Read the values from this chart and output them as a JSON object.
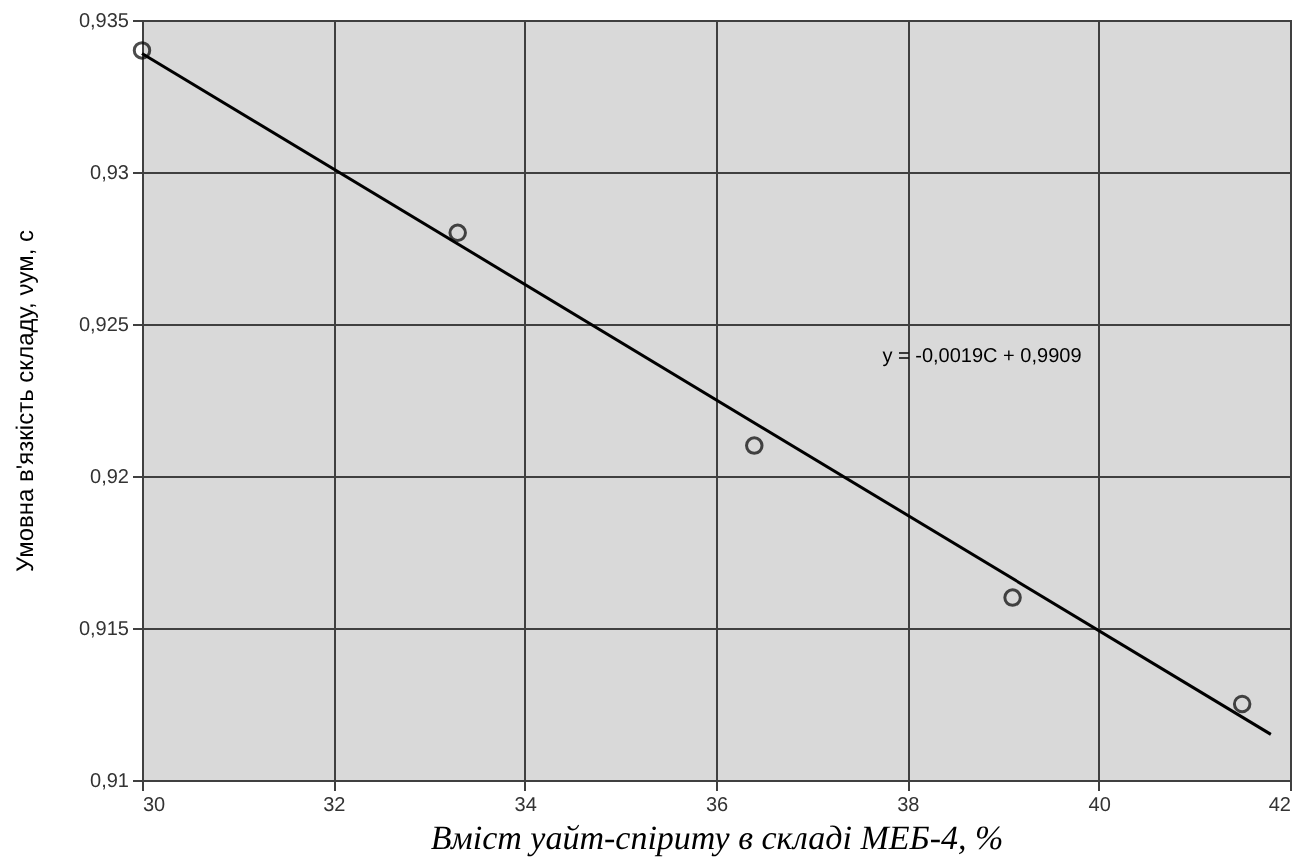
{
  "chart_data": {
    "type": "scatter",
    "xlabel": "Вміст уайт-спіриту в складі МЕБ-4, %",
    "ylabel": "Умовна в'язкість складу, νум, с",
    "xlim": [
      30,
      42
    ],
    "xticks": [
      30,
      32,
      34,
      36,
      38,
      40,
      42
    ],
    "ylim": [
      0.91,
      0.935
    ],
    "yticks": [
      {
        "value": 0.91,
        "label": "0,91"
      },
      {
        "value": 0.915,
        "label": "0,915"
      },
      {
        "value": 0.92,
        "label": "0,92"
      },
      {
        "value": 0.925,
        "label": "0,925"
      },
      {
        "value": 0.93,
        "label": "0,93"
      },
      {
        "value": 0.935,
        "label": "0,935"
      }
    ],
    "grid": true,
    "marker": "circle",
    "series": [
      {
        "color": "#000000",
        "x": [
          30,
          33.3,
          36.4,
          39.1,
          41.5
        ],
        "values": [
          0.934,
          0.928,
          0.921,
          0.916,
          0.9125
        ]
      },
      {
        "type": "line",
        "color": "#000000",
        "marker": "none",
        "x": [
          30,
          41.8
        ],
        "values": [
          0.9339,
          0.9115
        ]
      }
    ],
    "annotations": [
      "y = -0,0019C + 0,9909"
    ]
  }
}
